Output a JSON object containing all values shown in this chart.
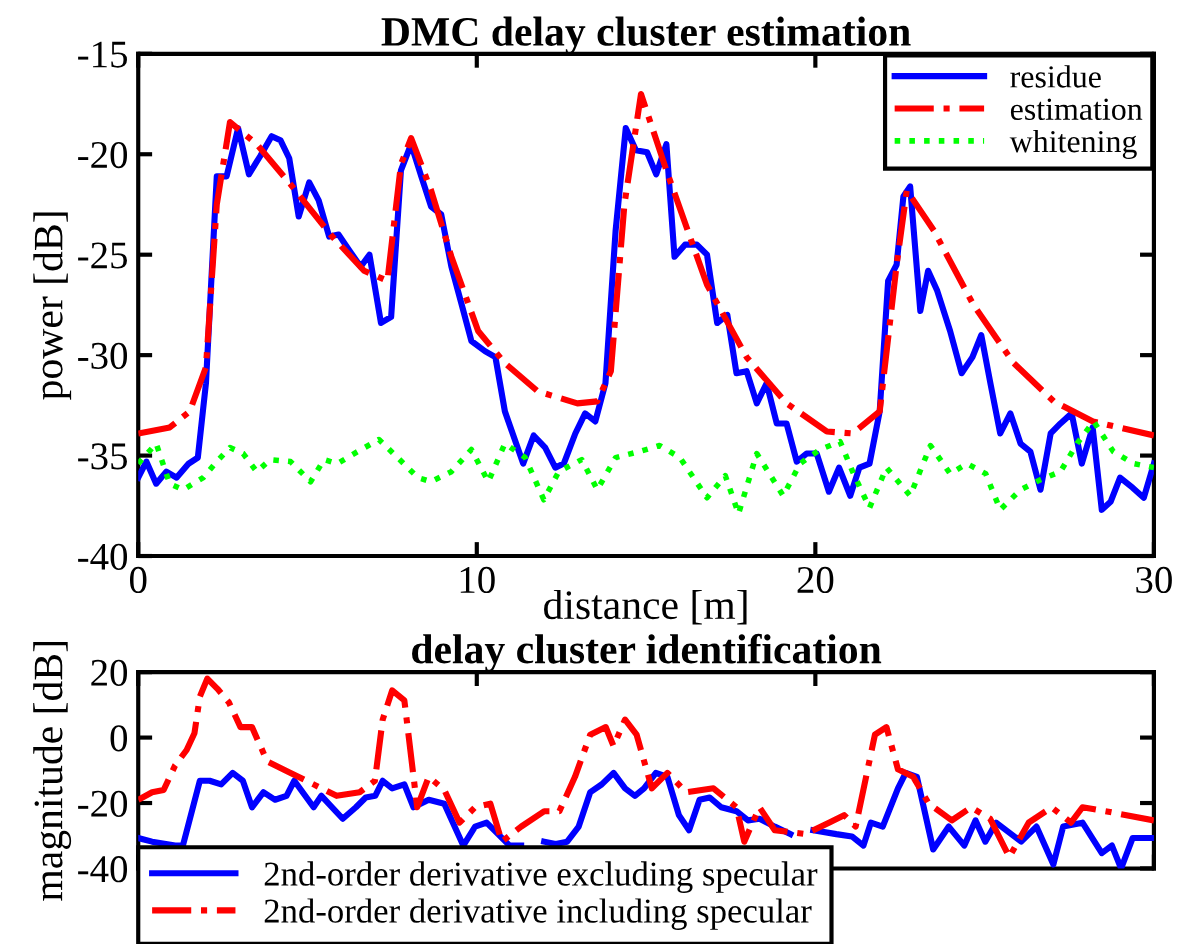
{
  "chart_data": [
    {
      "type": "line",
      "title": "DMC delay cluster estimation",
      "xlabel": "distance [m]",
      "ylabel": "power [dB]",
      "xlim": [
        0,
        30
      ],
      "xticks": [
        0,
        10,
        20,
        30
      ],
      "ylim": [
        -40,
        -15
      ],
      "yticks": [
        -40,
        -35,
        -30,
        -25,
        -20,
        -15
      ],
      "grid": false,
      "legend": "top right",
      "series": [
        {
          "name": "residue",
          "color": "#0000ff",
          "line_style": "solid",
          "x": [
            0,
            0.24,
            0.53,
            0.83,
            1.13,
            1.49,
            1.76,
            2.0,
            2.32,
            2.61,
            2.95,
            3.27,
            3.6,
            3.94,
            4.2,
            4.46,
            4.74,
            5.05,
            5.33,
            5.64,
            5.92,
            6.24,
            6.57,
            6.83,
            7.17,
            7.47,
            7.76,
            8.06,
            8.36,
            8.65,
            8.95,
            9.25,
            9.54,
            9.84,
            10.24,
            10.55,
            10.83,
            11.37,
            11.68,
            12.02,
            12.32,
            12.57,
            12.91,
            13.2,
            13.5,
            13.8,
            14.1,
            14.4,
            14.7,
            15.03,
            15.3,
            15.6,
            15.84,
            16.15,
            16.5,
            16.8,
            17.1,
            17.4,
            17.67,
            17.97,
            18.27,
            18.56,
            18.86,
            19.15,
            19.45,
            19.74,
            20.04,
            20.4,
            20.7,
            21.03,
            21.3,
            21.6,
            21.9,
            22.15,
            22.4,
            22.6,
            22.8,
            23.1,
            23.33,
            23.6,
            23.98,
            24.32,
            24.64,
            24.9,
            25.17,
            25.46,
            25.76,
            26.06,
            26.35,
            26.65,
            26.95,
            27.24,
            27.57,
            27.87,
            28.19,
            28.46,
            28.72,
            29.0,
            29.37,
            29.7,
            30.0
          ],
          "values": [
            -36.1,
            -35.3,
            -36.4,
            -35.8,
            -36.1,
            -35.4,
            -35.1,
            -31.4,
            -21.1,
            -21.1,
            -18.7,
            -21.0,
            -20.1,
            -19.1,
            -19.3,
            -20.2,
            -23.1,
            -21.4,
            -22.3,
            -24.1,
            -24.0,
            -24.8,
            -25.6,
            -25.0,
            -28.4,
            -28.1,
            -20.8,
            -19.5,
            -21.1,
            -22.6,
            -23.0,
            -25.6,
            -27.4,
            -29.3,
            -29.8,
            -30.1,
            -32.8,
            -35.4,
            -34.0,
            -34.6,
            -35.6,
            -35.4,
            -33.9,
            -32.9,
            -33.3,
            -31.4,
            -23.8,
            -18.7,
            -19.8,
            -19.9,
            -21.0,
            -19.5,
            -25.1,
            -24.5,
            -24.5,
            -25.0,
            -28.4,
            -28.0,
            -30.9,
            -30.8,
            -32.4,
            -31.4,
            -33.4,
            -33.4,
            -35.3,
            -34.9,
            -34.9,
            -36.8,
            -35.6,
            -37.0,
            -35.6,
            -35.4,
            -32.8,
            -26.3,
            -25.5,
            -22.1,
            -21.6,
            -27.8,
            -25.8,
            -26.8,
            -28.8,
            -30.9,
            -30.1,
            -29.0,
            -31.4,
            -33.9,
            -32.9,
            -34.4,
            -34.8,
            -36.7,
            -33.9,
            -33.4,
            -32.9,
            -35.4,
            -33.6,
            -37.7,
            -37.3,
            -36.1,
            -36.6,
            -37.1,
            -35.4
          ]
        },
        {
          "name": "estimation",
          "color": "#ff0000",
          "line_style": "dashdot",
          "x": [
            0,
            0.93,
            1.52,
            2.0,
            2.32,
            2.71,
            3.5,
            4.5,
            5.68,
            6.67,
            7.36,
            7.76,
            8.06,
            8.65,
            9.25,
            10.04,
            10.83,
            11.8,
            12.97,
            13.56,
            13.96,
            14.36,
            14.85,
            15.6,
            16.8,
            17.97,
            19.15,
            20.34,
            21.1,
            21.9,
            22.4,
            22.7,
            23.5,
            24.67,
            25.86,
            27.04,
            28.2,
            30
          ],
          "values": [
            -33.9,
            -33.6,
            -32.8,
            -30.6,
            -22.5,
            -18.4,
            -19.5,
            -21.5,
            -24.0,
            -25.8,
            -26.3,
            -20.5,
            -19.2,
            -21.8,
            -25.1,
            -28.8,
            -30.4,
            -31.8,
            -32.4,
            -32.3,
            -30.8,
            -22.5,
            -17.0,
            -20.8,
            -26.5,
            -30.1,
            -32.4,
            -33.8,
            -33.9,
            -32.8,
            -25.5,
            -21.8,
            -23.8,
            -27.5,
            -30.4,
            -32.3,
            -33.3,
            -34.0
          ]
        },
        {
          "name": "whitening",
          "color": "#00ff00",
          "line_style": "dotted",
          "x": [
            0,
            0.53,
            0.93,
            1.33,
            1.92,
            2.32,
            2.71,
            3.1,
            3.5,
            3.9,
            4.5,
            5.09,
            5.49,
            5.88,
            6.48,
            7.11,
            7.66,
            8.26,
            8.65,
            9.25,
            9.84,
            10.34,
            10.83,
            11.43,
            11.98,
            12.42,
            13.1,
            13.56,
            14.1,
            14.8,
            15.4,
            16.0,
            16.8,
            17.34,
            17.73,
            18.27,
            19.05,
            19.55,
            20.14,
            20.73,
            21.1,
            21.6,
            22.1,
            22.8,
            23.4,
            23.98,
            24.48,
            25.03,
            25.46,
            26.06,
            26.65,
            27.24,
            27.73,
            28.22,
            28.8,
            29.4,
            30
          ],
          "values": [
            -35.4,
            -34.4,
            -36.4,
            -36.7,
            -36.1,
            -35.3,
            -34.6,
            -34.9,
            -35.8,
            -35.2,
            -35.3,
            -36.3,
            -35.2,
            -35.4,
            -34.8,
            -34.2,
            -35.1,
            -36.1,
            -36.3,
            -35.8,
            -34.7,
            -36.3,
            -34.4,
            -35.1,
            -37.2,
            -35.8,
            -35.2,
            -36.7,
            -35.1,
            -34.8,
            -34.5,
            -35.1,
            -37.1,
            -36.0,
            -37.9,
            -34.9,
            -37.0,
            -35.4,
            -34.7,
            -34.3,
            -35.8,
            -37.6,
            -35.6,
            -37.0,
            -34.5,
            -35.9,
            -35.4,
            -35.9,
            -37.7,
            -36.7,
            -36.2,
            -35.8,
            -34.4,
            -33.3,
            -34.8,
            -35.4,
            -35.6
          ]
        }
      ]
    },
    {
      "type": "line",
      "title": "delay cluster identification",
      "ylabel": "magnitude [dB]",
      "xlim": [
        0,
        30
      ],
      "xticks": [
        0,
        10,
        20,
        30
      ],
      "ylim": [
        -40,
        20
      ],
      "yticks": [
        -40,
        -20,
        0,
        20
      ],
      "tick_labels": "y",
      "grid": false,
      "legend": "bottom left",
      "series": [
        {
          "name": "2nd-order derivative excluding specular",
          "color": "#0000ff",
          "line_style": "solid",
          "x": [
            0,
            0.41,
            1.09,
            1.32,
            1.82,
            2.11,
            2.45,
            2.79,
            3.09,
            3.36,
            3.7,
            4.04,
            4.38,
            4.61,
            5.18,
            5.41,
            6.04,
            6.43,
            6.72,
            7.0,
            7.22,
            7.5,
            7.86,
            8.13,
            8.58,
            9.04,
            9.6,
            9.95,
            10.29,
            10.63,
            10.97,
            11.31,
            11.6,
            11.99,
            12.33,
            12.67,
            13.01,
            13.35,
            13.69,
            14.04,
            14.38,
            14.67,
            14.94,
            15.29,
            15.63,
            15.97,
            16.27,
            16.58,
            16.88,
            17.22,
            17.67,
            18.01,
            18.35,
            18.8,
            19.26,
            19.6,
            19.94,
            20.62,
            21.08,
            21.42,
            21.64,
            21.99,
            22.44,
            22.67,
            23.0,
            23.48,
            23.94,
            24.4,
            24.73,
            25.02,
            25.34,
            26.08,
            26.53,
            27.03,
            27.32,
            27.89,
            28.46,
            28.76,
            29.03,
            29.37,
            30
          ],
          "values": [
            -30.7,
            -31.8,
            -33.0,
            -33.0,
            -13.2,
            -13.2,
            -14.3,
            -10.8,
            -13.2,
            -21.3,
            -16.7,
            -19.0,
            -17.8,
            -13.2,
            -21.3,
            -17.8,
            -24.8,
            -21.3,
            -18.3,
            -17.8,
            -13.2,
            -15.5,
            -14.3,
            -21.3,
            -19.0,
            -20.2,
            -33.0,
            -27.2,
            -26.0,
            -29.5,
            -33.0,
            -33.0,
            null,
            -31.8,
            -32.5,
            -31.8,
            -27.2,
            -16.7,
            -14.3,
            -10.8,
            -15.5,
            -17.8,
            -15.5,
            -10.8,
            -12.0,
            -23.7,
            -28.3,
            -19.0,
            -18.3,
            -21.3,
            -22.5,
            -25.3,
            -24.8,
            -27.2,
            -29.5,
            null,
            -28.3,
            -29.5,
            -30.2,
            -33.0,
            -26.0,
            -27.2,
            -15.5,
            -10.8,
            -12.0,
            -34.2,
            -27.2,
            -33.0,
            -25.3,
            -31.8,
            -26.0,
            -31.8,
            -27.2,
            -38.8,
            -27.2,
            -26.0,
            -35.3,
            -33.0,
            -40.0,
            -30.7,
            -30.7
          ]
        },
        {
          "name": "2nd-order derivative including specular",
          "color": "#ff0000",
          "line_style": "dashdot",
          "x": [
            0,
            0.41,
            0.75,
            1.09,
            1.43,
            1.66,
            1.82,
            2.04,
            2.34,
            2.68,
            3.02,
            3.36,
            3.81,
            4.5,
            5.18,
            5.86,
            6.54,
            6.99,
            7.22,
            7.5,
            7.86,
            8.24,
            8.58,
            9.04,
            9.49,
            9.95,
            10.4,
            10.74,
            11.31,
            11.99,
            12.44,
            12.9,
            13.35,
            13.81,
            14.04,
            14.38,
            14.72,
            15.17,
            15.63,
            16.19,
            16.99,
            17.67,
            17.9,
            18.35,
            18.8,
            19.71,
            20.4,
            20.85,
            21.19,
            21.76,
            22.1,
            22.44,
            22.89,
            23.35,
            24.03,
            24.6,
            25.16,
            25.73,
            26.3,
            26.98,
            27.55,
            27.89,
            28.57,
            30
          ],
          "values": [
            -19.0,
            -16.7,
            -16.0,
            -8.5,
            -3.8,
            1.3,
            12.5,
            18.0,
            14.9,
            10.7,
            3.2,
            3.2,
            -7.3,
            -10.8,
            -14.3,
            -17.8,
            -16.7,
            -13.2,
            5.5,
            14.4,
            11.4,
            -21.3,
            -12.0,
            -16.0,
            -26.0,
            -21.3,
            -20.2,
            -31.8,
            -27.2,
            -22.5,
            -22.5,
            -12.0,
            0.9,
            3.2,
            -2.6,
            5.5,
            0.9,
            -15.5,
            -10.8,
            -16.7,
            -15.5,
            -21.3,
            -31.8,
            -21.3,
            -28.3,
            -29.5,
            -26.0,
            -23.7,
            -27.2,
            0.9,
            3.2,
            -9.7,
            -12.0,
            -20.2,
            -25.3,
            -21.3,
            -24.8,
            -36.5,
            -26.0,
            -21.3,
            -26.0,
            -21.3,
            -22.5,
            -25.3
          ]
        }
      ]
    }
  ]
}
